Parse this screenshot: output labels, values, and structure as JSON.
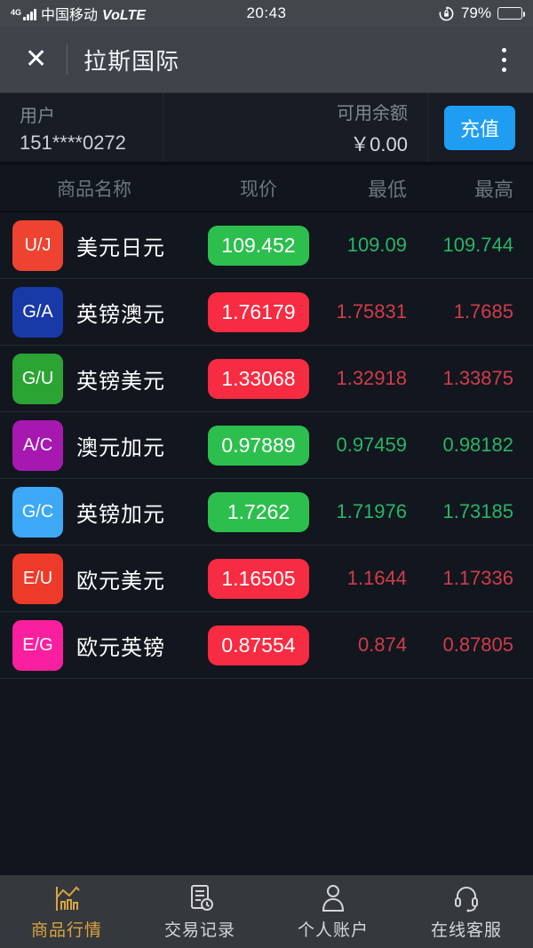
{
  "status_bar": {
    "network": "4G",
    "carrier": "中国移动",
    "volte": "VoLTE",
    "time": "20:43",
    "battery": "79%"
  },
  "nav": {
    "close": "✕",
    "title": "拉斯国际"
  },
  "account": {
    "user_label": "用户",
    "user_id": "151****0272",
    "balance_label": "可用余额",
    "balance": "￥0.00",
    "recharge_label": "充值"
  },
  "table": {
    "headers": [
      "商品名称",
      "现价",
      "最低",
      "最高"
    ],
    "rows": [
      {
        "badge": "U/J",
        "badge_color": "#ee4331",
        "name": "美元日元",
        "price": "109.452",
        "price_state": "up",
        "low": "109.09",
        "low_state": "up",
        "high": "109.744",
        "high_state": "up"
      },
      {
        "badge": "G/A",
        "badge_color": "#1839a8",
        "name": "英镑澳元",
        "price": "1.76179",
        "price_state": "down",
        "low": "1.75831",
        "low_state": "down",
        "high": "1.7685",
        "high_state": "down"
      },
      {
        "badge": "G/U",
        "badge_color": "#2ba434",
        "name": "英镑美元",
        "price": "1.33068",
        "price_state": "down",
        "low": "1.32918",
        "low_state": "down",
        "high": "1.33875",
        "high_state": "down"
      },
      {
        "badge": "A/C",
        "badge_color": "#a718b0",
        "name": "澳元加元",
        "price": "0.97889",
        "price_state": "up",
        "low": "0.97459",
        "low_state": "up",
        "high": "0.98182",
        "high_state": "up"
      },
      {
        "badge": "G/C",
        "badge_color": "#3da8f5",
        "name": "英镑加元",
        "price": "1.7262",
        "price_state": "up",
        "low": "1.71976",
        "low_state": "up",
        "high": "1.73185",
        "high_state": "up"
      },
      {
        "badge": "E/U",
        "badge_color": "#ee3a28",
        "name": "欧元美元",
        "price": "1.16505",
        "price_state": "down",
        "low": "1.1644",
        "low_state": "down",
        "high": "1.17336",
        "high_state": "down"
      },
      {
        "badge": "E/G",
        "badge_color": "#fa1f9e",
        "name": "欧元英镑",
        "price": "0.87554",
        "price_state": "down",
        "low": "0.874",
        "low_state": "down",
        "high": "0.87805",
        "high_state": "down"
      }
    ]
  },
  "colors": {
    "up": "#2dbf4e",
    "down": "#f72b41",
    "up_text": "#28b565",
    "down_text": "#d13c4a",
    "accent_blue": "#1e9df2",
    "tab_active": "#d9a440"
  },
  "tabbar": {
    "tabs": [
      {
        "label": "商品行情",
        "active": true
      },
      {
        "label": "交易记录",
        "active": false
      },
      {
        "label": "个人账户",
        "active": false
      },
      {
        "label": "在线客服",
        "active": false
      }
    ]
  }
}
